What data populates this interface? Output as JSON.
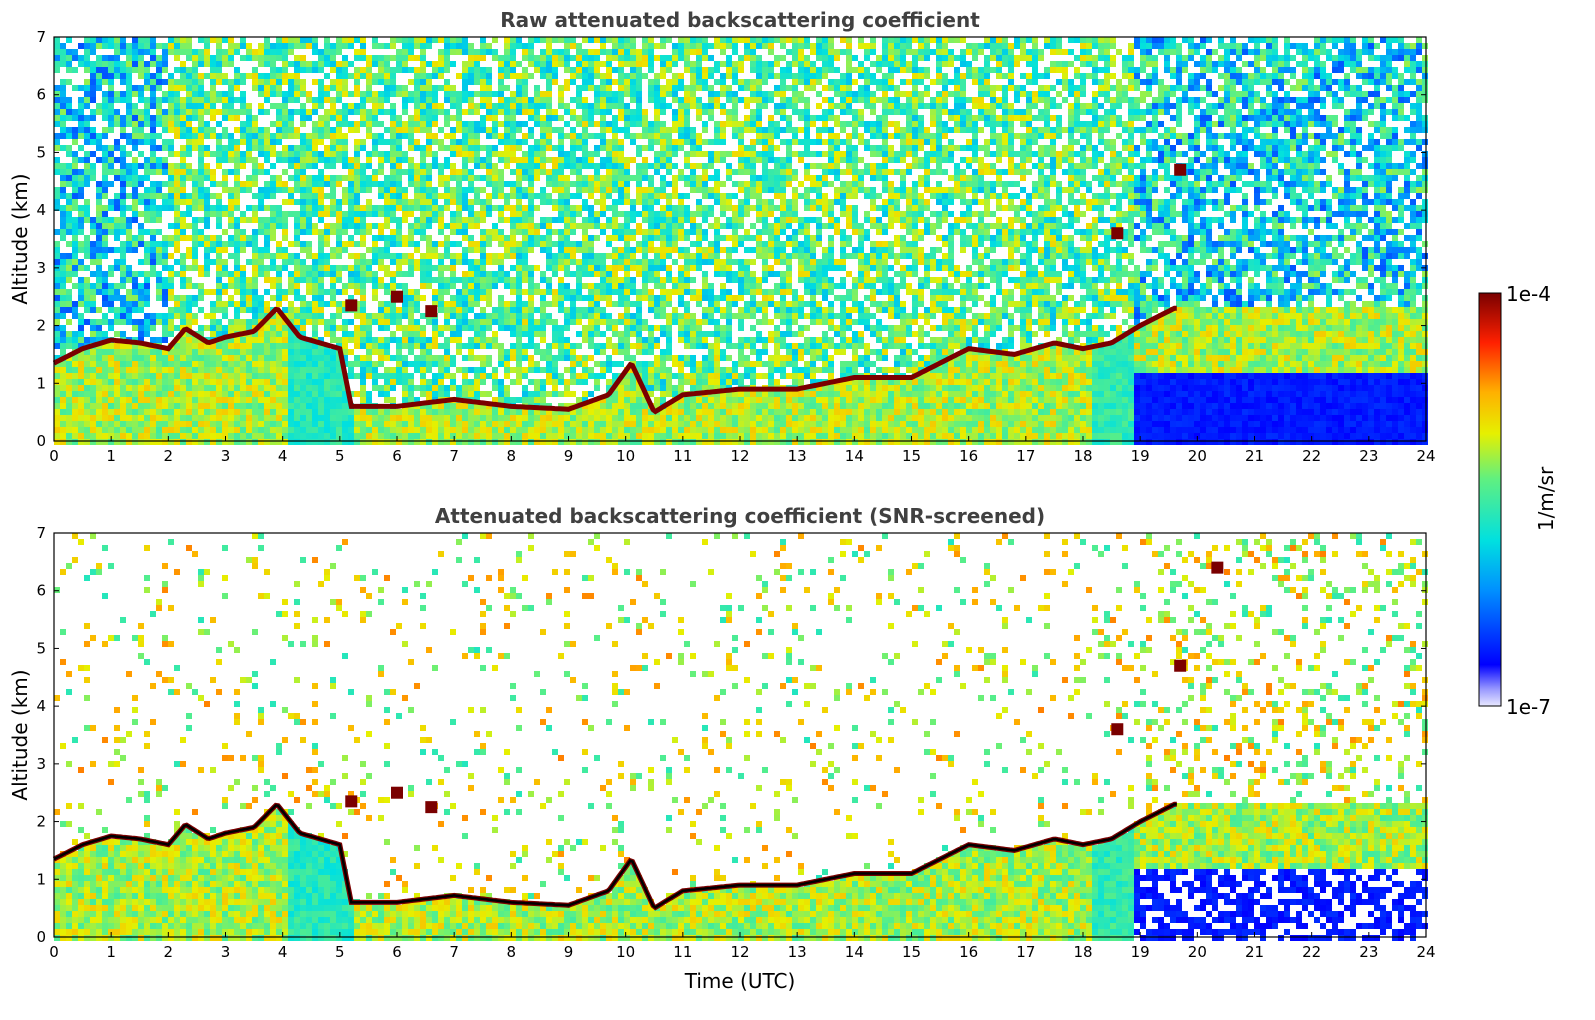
{
  "chart_data": [
    {
      "type": "heatmap",
      "title": "Raw attenuated backscattering coefficient",
      "xlabel": "",
      "ylabel": "Altitude (km)",
      "xlim": [
        0,
        24
      ],
      "ylim": [
        0,
        7
      ],
      "x_ticks": [
        "0",
        "1",
        "2",
        "3",
        "4",
        "5",
        "6",
        "7",
        "8",
        "9",
        "10",
        "11",
        "12",
        "13",
        "14",
        "15",
        "16",
        "17",
        "18",
        "19",
        "20",
        "21",
        "22",
        "23",
        "24"
      ],
      "y_ticks": [
        "0",
        "1",
        "2",
        "3",
        "4",
        "5",
        "6",
        "7"
      ],
      "variant": "raw",
      "features": {
        "cloud_top_layer": [
          [
            0,
            1.35
          ],
          [
            0.5,
            1.6
          ],
          [
            1,
            1.75
          ],
          [
            1.5,
            1.7
          ],
          [
            2,
            1.6
          ],
          [
            2.3,
            1.95
          ],
          [
            2.7,
            1.7
          ],
          [
            3,
            1.8
          ],
          [
            3.5,
            1.9
          ],
          [
            3.9,
            2.3
          ],
          [
            4.3,
            1.8
          ],
          [
            5,
            1.6
          ],
          [
            5.2,
            0.6
          ],
          [
            6,
            0.6
          ],
          [
            7,
            0.72
          ],
          [
            8,
            0.6
          ],
          [
            9,
            0.55
          ],
          [
            9.7,
            0.8
          ],
          [
            10.1,
            1.35
          ],
          [
            10.5,
            0.5
          ],
          [
            11,
            0.8
          ],
          [
            12,
            0.9
          ],
          [
            13,
            0.9
          ],
          [
            14,
            1.1
          ],
          [
            15,
            1.1
          ],
          [
            16,
            1.6
          ],
          [
            16.8,
            1.5
          ],
          [
            17.5,
            1.7
          ],
          [
            18,
            1.6
          ],
          [
            18.5,
            1.7
          ],
          [
            19,
            2.0
          ],
          [
            19.6,
            2.3
          ]
        ],
        "elevated_features": [
          [
            5.2,
            2.35
          ],
          [
            6.0,
            2.5
          ],
          [
            6.6,
            2.25
          ],
          [
            18.6,
            3.6
          ],
          [
            19.7,
            4.7
          ]
        ]
      }
    },
    {
      "type": "heatmap",
      "title": "Attenuated backscattering coefficient (SNR-screened)",
      "xlabel": "Time (UTC)",
      "ylabel": "Altitude (km)",
      "xlim": [
        0,
        24
      ],
      "ylim": [
        0,
        7
      ],
      "x_ticks": [
        "0",
        "1",
        "2",
        "3",
        "4",
        "5",
        "6",
        "7",
        "8",
        "9",
        "10",
        "11",
        "12",
        "13",
        "14",
        "15",
        "16",
        "17",
        "18",
        "19",
        "20",
        "21",
        "22",
        "23",
        "24"
      ],
      "y_ticks": [
        "0",
        "1",
        "2",
        "3",
        "4",
        "5",
        "6",
        "7"
      ],
      "variant": "screened",
      "features": {
        "cloud_top_layer": [
          [
            0,
            1.35
          ],
          [
            0.5,
            1.6
          ],
          [
            1,
            1.75
          ],
          [
            1.5,
            1.7
          ],
          [
            2,
            1.6
          ],
          [
            2.3,
            1.95
          ],
          [
            2.7,
            1.7
          ],
          [
            3,
            1.8
          ],
          [
            3.5,
            1.9
          ],
          [
            3.9,
            2.3
          ],
          [
            4.3,
            1.8
          ],
          [
            5,
            1.6
          ],
          [
            5.2,
            0.6
          ],
          [
            6,
            0.6
          ],
          [
            7,
            0.72
          ],
          [
            8,
            0.6
          ],
          [
            9,
            0.55
          ],
          [
            9.7,
            0.8
          ],
          [
            10.1,
            1.35
          ],
          [
            10.5,
            0.5
          ],
          [
            11,
            0.8
          ],
          [
            12,
            0.9
          ],
          [
            13,
            0.9
          ],
          [
            14,
            1.1
          ],
          [
            15,
            1.1
          ],
          [
            16,
            1.6
          ],
          [
            16.8,
            1.5
          ],
          [
            17.5,
            1.7
          ],
          [
            18,
            1.6
          ],
          [
            18.5,
            1.7
          ],
          [
            19,
            2.0
          ],
          [
            19.6,
            2.3
          ]
        ],
        "elevated_features": [
          [
            5.2,
            2.35
          ],
          [
            6.0,
            2.5
          ],
          [
            6.6,
            2.25
          ],
          [
            18.6,
            3.6
          ],
          [
            19.7,
            4.7
          ],
          [
            20.35,
            6.4
          ]
        ]
      }
    }
  ],
  "colorbar": {
    "max_label": "1e-4",
    "min_label": "1e-7",
    "unit_label": "1/m/sr",
    "scale": "log",
    "colormap": "jet"
  },
  "colors": {
    "title_text": "#404040",
    "saturated": "#7a0000",
    "low": "#0000ff"
  }
}
